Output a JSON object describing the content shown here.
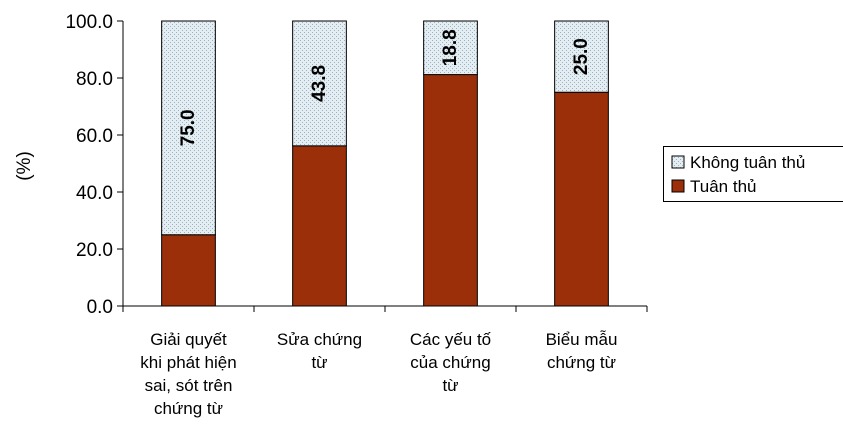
{
  "chart_data": {
    "type": "bar",
    "stacked": true,
    "title": "",
    "xlabel": "",
    "ylabel": "(%)",
    "ylim": [
      0,
      100
    ],
    "yticks": [
      "0.0",
      "20.0",
      "40.0",
      "60.0",
      "80.0",
      "100.0"
    ],
    "categories": [
      "Giải quyết khi phát hiện sai, sót trên chứng từ",
      "Sửa chứng từ",
      "Các yếu tố của chứng từ",
      "Biểu mẫu chứng từ"
    ],
    "category_lines": [
      [
        "Giải quyết",
        "khi phát hiện",
        "sai, sót trên",
        "chứng từ"
      ],
      [
        "Sửa chứng",
        "từ"
      ],
      [
        "Các yếu tố",
        "của chứng",
        "từ"
      ],
      [
        "Biểu mẫu",
        "chứng từ"
      ]
    ],
    "series": [
      {
        "name": "Tuân thủ",
        "values": [
          25.0,
          56.2,
          81.2,
          75.0
        ],
        "color": "#9b2f0a"
      },
      {
        "name": "Không tuân thủ",
        "values": [
          75.0,
          43.8,
          18.8,
          25.0
        ],
        "color": "#dde8ee",
        "data_labels": [
          "75.0",
          "43.8",
          "18.8",
          "25.0"
        ]
      }
    ],
    "legend": "right",
    "grid": false
  }
}
